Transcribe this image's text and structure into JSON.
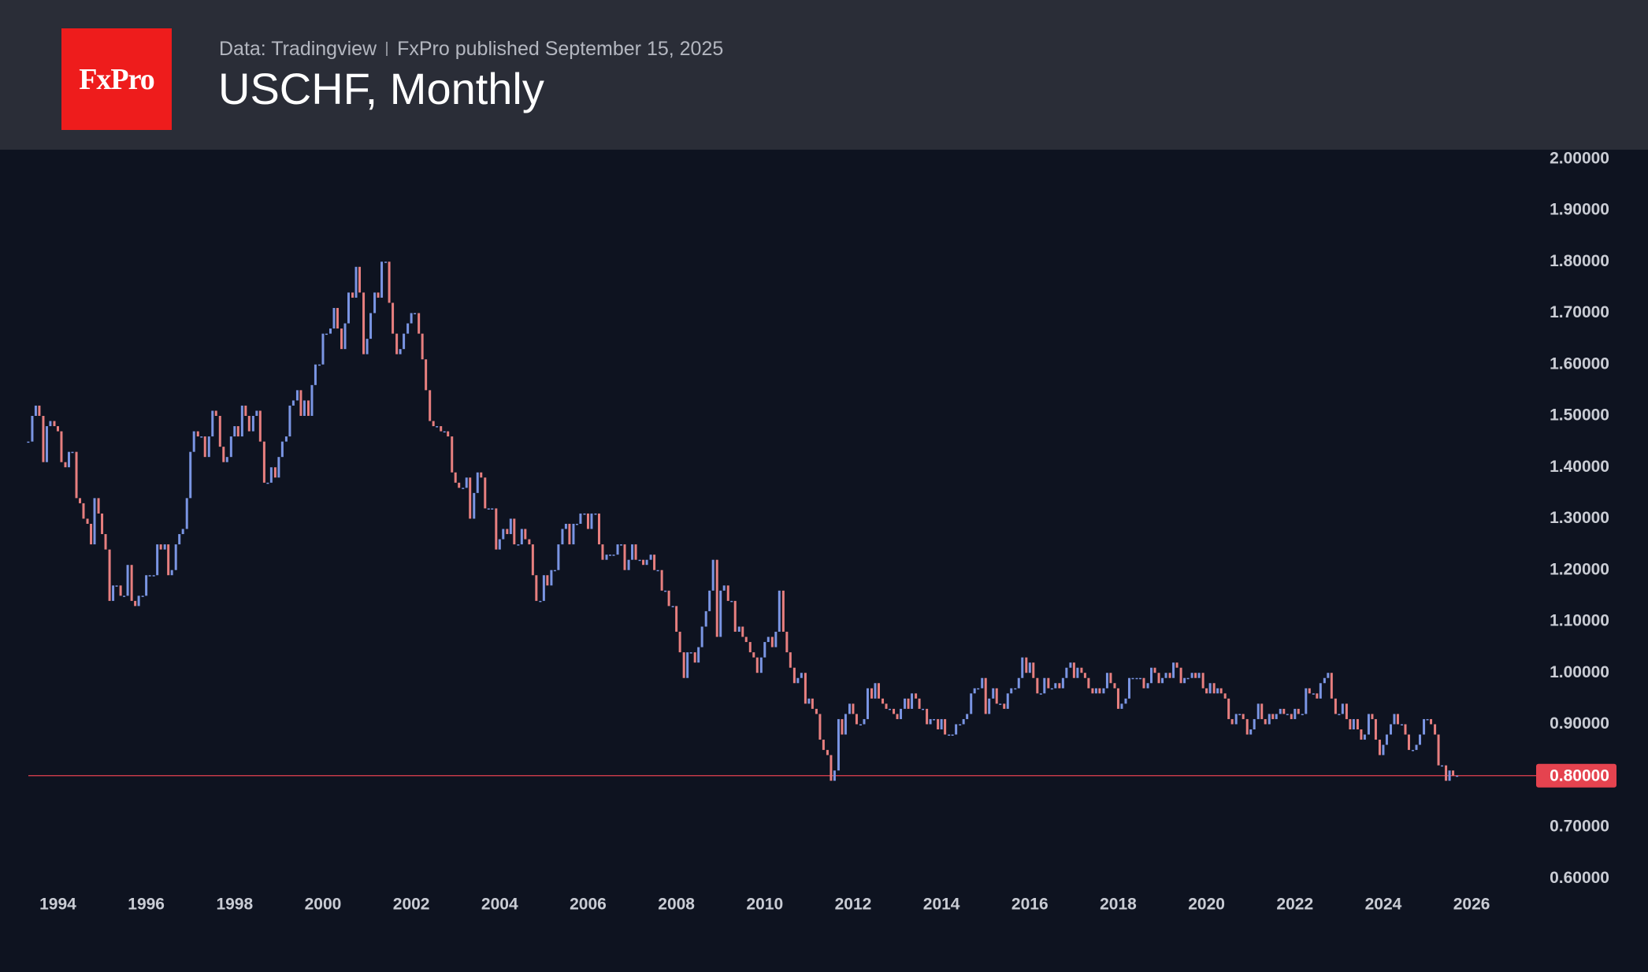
{
  "header": {
    "logo": "FxPro",
    "source": "Data: Tradingview",
    "published": "FxPro published September 15, 2025"
  },
  "chart_data": {
    "type": "candlestick",
    "title": "USCHF, Monthly",
    "up_color": "#7a95e3",
    "down_color": "#e77f7f",
    "price_line": {
      "value": 0.8,
      "label": "0.80000",
      "color": "#e5434f"
    },
    "xlim": [
      1992.69,
      2027.46
    ],
    "ylim": [
      0.585,
      2.018
    ],
    "xticks": [
      1994,
      1996,
      1998,
      2000,
      2002,
      2004,
      2006,
      2008,
      2010,
      2012,
      2014,
      2016,
      2018,
      2020,
      2022,
      2024,
      2026
    ],
    "yticks": [
      {
        "value": 0.6,
        "label": "0.60000"
      },
      {
        "value": 0.7,
        "label": "0.70000"
      },
      {
        "value": 0.8,
        "label": "0.80000"
      },
      {
        "value": 0.9,
        "label": "0.90000"
      },
      {
        "value": 1.0,
        "label": "1.00000"
      },
      {
        "value": 1.1,
        "label": "1.10000"
      },
      {
        "value": 1.2,
        "label": "1.20000"
      },
      {
        "value": 1.3,
        "label": "1.30000"
      },
      {
        "value": 1.4,
        "label": "1.40000"
      },
      {
        "value": 1.5,
        "label": "1.50000"
      },
      {
        "value": 1.6,
        "label": "1.60000"
      },
      {
        "value": 1.7,
        "label": "1.70000"
      },
      {
        "value": 1.8,
        "label": "1.80000"
      },
      {
        "value": 1.9,
        "label": "1.90000"
      },
      {
        "value": 2.0,
        "label": "2.00000"
      }
    ],
    "x": [
      1993.33,
      1993.42,
      1993.5,
      1993.58,
      1993.67,
      1993.75,
      1993.83,
      1993.92,
      1994,
      1994.08,
      1994.17,
      1994.25,
      1994.33,
      1994.42,
      1994.5,
      1994.58,
      1994.67,
      1994.75,
      1994.83,
      1994.92,
      1995,
      1995.08,
      1995.17,
      1995.25,
      1995.33,
      1995.42,
      1995.5,
      1995.58,
      1995.67,
      1995.75,
      1995.83,
      1995.92,
      1996,
      1996.08,
      1996.17,
      1996.25,
      1996.33,
      1996.42,
      1996.5,
      1996.58,
      1996.67,
      1996.75,
      1996.83,
      1996.92,
      1997,
      1997.08,
      1997.17,
      1997.25,
      1997.33,
      1997.42,
      1997.5,
      1997.58,
      1997.67,
      1997.75,
      1997.83,
      1997.92,
      1998,
      1998.08,
      1998.17,
      1998.25,
      1998.33,
      1998.42,
      1998.5,
      1998.58,
      1998.67,
      1998.75,
      1998.83,
      1998.92,
      1999,
      1999.08,
      1999.17,
      1999.25,
      1999.33,
      1999.42,
      1999.5,
      1999.58,
      1999.67,
      1999.75,
      1999.83,
      1999.92,
      2000,
      2000.08,
      2000.17,
      2000.25,
      2000.33,
      2000.42,
      2000.5,
      2000.58,
      2000.67,
      2000.75,
      2000.83,
      2000.92,
      2001,
      2001.08,
      2001.17,
      2001.25,
      2001.33,
      2001.42,
      2001.5,
      2001.58,
      2001.67,
      2001.75,
      2001.83,
      2001.92,
      2002,
      2002.08,
      2002.17,
      2002.25,
      2002.33,
      2002.42,
      2002.5,
      2002.58,
      2002.67,
      2002.75,
      2002.83,
      2002.92,
      2003,
      2003.08,
      2003.17,
      2003.25,
      2003.33,
      2003.42,
      2003.5,
      2003.58,
      2003.67,
      2003.75,
      2003.83,
      2003.92,
      2004,
      2004.08,
      2004.17,
      2004.25,
      2004.33,
      2004.42,
      2004.5,
      2004.58,
      2004.67,
      2004.75,
      2004.83,
      2004.92,
      2005,
      2005.08,
      2005.17,
      2005.25,
      2005.33,
      2005.42,
      2005.5,
      2005.58,
      2005.67,
      2005.75,
      2005.83,
      2005.92,
      2006,
      2006.08,
      2006.17,
      2006.25,
      2006.33,
      2006.42,
      2006.5,
      2006.58,
      2006.67,
      2006.75,
      2006.83,
      2006.92,
      2007,
      2007.08,
      2007.17,
      2007.25,
      2007.33,
      2007.42,
      2007.5,
      2007.58,
      2007.67,
      2007.75,
      2007.83,
      2007.92,
      2008,
      2008.08,
      2008.17,
      2008.25,
      2008.33,
      2008.42,
      2008.5,
      2008.58,
      2008.67,
      2008.75,
      2008.83,
      2008.92,
      2009,
      2009.08,
      2009.17,
      2009.25,
      2009.33,
      2009.42,
      2009.5,
      2009.58,
      2009.67,
      2009.75,
      2009.83,
      2009.92,
      2010,
      2010.08,
      2010.17,
      2010.25,
      2010.33,
      2010.42,
      2010.5,
      2010.58,
      2010.67,
      2010.75,
      2010.83,
      2010.92,
      2011,
      2011.08,
      2011.17,
      2011.25,
      2011.33,
      2011.42,
      2011.5,
      2011.58,
      2011.67,
      2011.75,
      2011.83,
      2011.92,
      2012,
      2012.08,
      2012.17,
      2012.25,
      2012.33,
      2012.42,
      2012.5,
      2012.58,
      2012.67,
      2012.75,
      2012.83,
      2012.92,
      2013,
      2013.08,
      2013.17,
      2013.25,
      2013.33,
      2013.42,
      2013.5,
      2013.58,
      2013.67,
      2013.75,
      2013.83,
      2013.92,
      2014,
      2014.08,
      2014.17,
      2014.25,
      2014.33,
      2014.42,
      2014.5,
      2014.58,
      2014.67,
      2014.75,
      2014.83,
      2014.92,
      2015,
      2015.08,
      2015.17,
      2015.25,
      2015.33,
      2015.42,
      2015.5,
      2015.58,
      2015.67,
      2015.75,
      2015.83,
      2015.92,
      2016,
      2016.08,
      2016.17,
      2016.25,
      2016.33,
      2016.42,
      2016.5,
      2016.58,
      2016.67,
      2016.75,
      2016.83,
      2016.92,
      2017,
      2017.08,
      2017.17,
      2017.25,
      2017.33,
      2017.42,
      2017.5,
      2017.58,
      2017.67,
      2017.75,
      2017.83,
      2017.92,
      2018,
      2018.08,
      2018.17,
      2018.25,
      2018.33,
      2018.42,
      2018.5,
      2018.58,
      2018.67,
      2018.75,
      2018.83,
      2018.92,
      2019,
      2019.08,
      2019.17,
      2019.25,
      2019.33,
      2019.42,
      2019.5,
      2019.58,
      2019.67,
      2019.75,
      2019.83,
      2019.92,
      2020,
      2020.08,
      2020.17,
      2020.25,
      2020.33,
      2020.42,
      2020.5,
      2020.58,
      2020.67,
      2020.75,
      2020.83,
      2020.92,
      2021,
      2021.08,
      2021.17,
      2021.25,
      2021.33,
      2021.42,
      2021.5,
      2021.58,
      2021.67,
      2021.75,
      2021.83,
      2021.92,
      2022,
      2022.08,
      2022.17,
      2022.25,
      2022.33,
      2022.42,
      2022.5,
      2022.58,
      2022.67,
      2022.75,
      2022.83,
      2022.92,
      2023,
      2023.08,
      2023.17,
      2023.25,
      2023.33,
      2023.42,
      2023.5,
      2023.58,
      2023.67,
      2023.75,
      2023.83,
      2023.92,
      2024,
      2024.08,
      2024.17,
      2024.25,
      2024.33,
      2024.42,
      2024.5,
      2024.58,
      2024.67,
      2024.75,
      2024.83,
      2024.92,
      2025,
      2025.08,
      2025.17,
      2025.25,
      2025.33,
      2025.42,
      2025.5,
      2025.58,
      2025.67
    ],
    "values": [
      1.45,
      1.5,
      1.52,
      1.5,
      1.41,
      1.48,
      1.49,
      1.48,
      1.47,
      1.41,
      1.4,
      1.43,
      1.43,
      1.34,
      1.33,
      1.3,
      1.29,
      1.25,
      1.34,
      1.31,
      1.27,
      1.24,
      1.14,
      1.17,
      1.17,
      1.15,
      1.15,
      1.21,
      1.14,
      1.13,
      1.15,
      1.15,
      1.19,
      1.19,
      1.19,
      1.25,
      1.24,
      1.25,
      1.19,
      1.2,
      1.25,
      1.27,
      1.28,
      1.34,
      1.43,
      1.47,
      1.46,
      1.46,
      1.42,
      1.46,
      1.51,
      1.5,
      1.44,
      1.41,
      1.42,
      1.46,
      1.48,
      1.46,
      1.52,
      1.5,
      1.47,
      1.5,
      1.51,
      1.45,
      1.37,
      1.37,
      1.4,
      1.38,
      1.42,
      1.45,
      1.46,
      1.52,
      1.53,
      1.55,
      1.5,
      1.53,
      1.5,
      1.56,
      1.6,
      1.6,
      1.66,
      1.66,
      1.67,
      1.71,
      1.67,
      1.63,
      1.68,
      1.74,
      1.73,
      1.79,
      1.74,
      1.62,
      1.65,
      1.7,
      1.74,
      1.73,
      1.8,
      1.8,
      1.72,
      1.66,
      1.62,
      1.63,
      1.66,
      1.68,
      1.7,
      1.7,
      1.66,
      1.61,
      1.55,
      1.49,
      1.48,
      1.48,
      1.47,
      1.47,
      1.46,
      1.39,
      1.37,
      1.36,
      1.36,
      1.38,
      1.3,
      1.35,
      1.39,
      1.38,
      1.32,
      1.32,
      1.32,
      1.24,
      1.26,
      1.28,
      1.27,
      1.3,
      1.25,
      1.25,
      1.28,
      1.26,
      1.25,
      1.19,
      1.14,
      1.14,
      1.19,
      1.17,
      1.2,
      1.2,
      1.25,
      1.28,
      1.29,
      1.25,
      1.29,
      1.29,
      1.31,
      1.31,
      1.28,
      1.31,
      1.31,
      1.25,
      1.22,
      1.23,
      1.23,
      1.23,
      1.25,
      1.25,
      1.2,
      1.22,
      1.25,
      1.22,
      1.22,
      1.21,
      1.22,
      1.23,
      1.2,
      1.2,
      1.16,
      1.16,
      1.13,
      1.13,
      1.08,
      1.04,
      0.99,
      1.04,
      1.04,
      1.02,
      1.05,
      1.09,
      1.12,
      1.16,
      1.22,
      1.07,
      1.16,
      1.17,
      1.14,
      1.14,
      1.08,
      1.09,
      1.07,
      1.06,
      1.04,
      1.03,
      1.0,
      1.03,
      1.06,
      1.07,
      1.05,
      1.08,
      1.16,
      1.08,
      1.04,
      1.01,
      0.98,
      0.99,
      1.0,
      0.94,
      0.95,
      0.93,
      0.92,
      0.87,
      0.85,
      0.84,
      0.79,
      0.81,
      0.91,
      0.88,
      0.92,
      0.94,
      0.92,
      0.9,
      0.9,
      0.91,
      0.97,
      0.95,
      0.98,
      0.95,
      0.94,
      0.93,
      0.93,
      0.92,
      0.91,
      0.93,
      0.95,
      0.93,
      0.96,
      0.95,
      0.93,
      0.93,
      0.9,
      0.91,
      0.91,
      0.89,
      0.91,
      0.88,
      0.88,
      0.88,
      0.9,
      0.9,
      0.91,
      0.92,
      0.96,
      0.97,
      0.97,
      0.99,
      0.92,
      0.95,
      0.97,
      0.94,
      0.94,
      0.93,
      0.96,
      0.97,
      0.97,
      0.99,
      1.03,
      1.0,
      1.02,
      0.99,
      0.96,
      0.96,
      0.99,
      0.97,
      0.97,
      0.98,
      0.97,
      0.99,
      1.01,
      1.02,
      0.99,
      1.01,
      1.0,
      0.99,
      0.97,
      0.96,
      0.97,
      0.96,
      0.97,
      1.0,
      0.98,
      0.97,
      0.93,
      0.94,
      0.95,
      0.99,
      0.99,
      0.99,
      0.99,
      0.97,
      0.98,
      1.01,
      1.0,
      0.98,
      0.99,
      1.0,
      0.99,
      1.02,
      1.01,
      0.98,
      0.99,
      0.99,
      1.0,
      0.99,
      1.0,
      0.97,
      0.96,
      0.98,
      0.96,
      0.97,
      0.96,
      0.95,
      0.91,
      0.9,
      0.92,
      0.92,
      0.91,
      0.88,
      0.89,
      0.91,
      0.94,
      0.91,
      0.9,
      0.92,
      0.91,
      0.92,
      0.93,
      0.92,
      0.92,
      0.91,
      0.93,
      0.92,
      0.92,
      0.97,
      0.96,
      0.96,
      0.95,
      0.98,
      0.99,
      1.0,
      0.95,
      0.92,
      0.92,
      0.94,
      0.91,
      0.89,
      0.91,
      0.89,
      0.87,
      0.88,
      0.92,
      0.91,
      0.87,
      0.84,
      0.86,
      0.88,
      0.9,
      0.92,
      0.9,
      0.9,
      0.88,
      0.85,
      0.85,
      0.86,
      0.88,
      0.91,
      0.91,
      0.9,
      0.88,
      0.82,
      0.82,
      0.79,
      0.81,
      0.8,
      0.8
    ]
  }
}
